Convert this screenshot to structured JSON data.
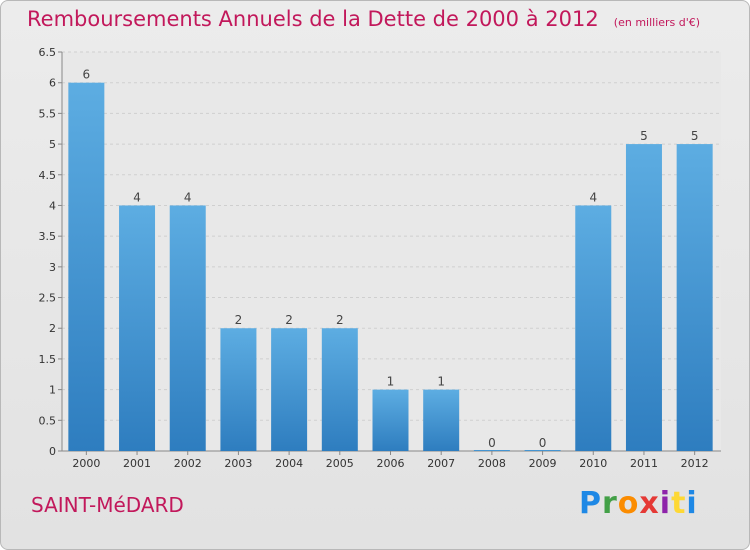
{
  "header": {
    "title": "Remboursements Annuels de la Dette de 2000 à 2012",
    "subtitle": "(en milliers d'€)"
  },
  "footer": {
    "commune": "SAINT-MéDARD",
    "logo": [
      "P",
      "r",
      "o",
      "x",
      "i",
      "t",
      "i"
    ]
  },
  "colors": {
    "title": "#c2185b",
    "bar_top": "#5dade2",
    "bar_bottom": "#2e7dbf",
    "background": "#e6e6e6"
  },
  "chart_data": {
    "type": "bar",
    "categories": [
      "2000",
      "2001",
      "2002",
      "2003",
      "2004",
      "2005",
      "2006",
      "2007",
      "2008",
      "2009",
      "2010",
      "2011",
      "2012"
    ],
    "values": [
      6,
      4,
      4,
      2,
      2,
      2,
      1,
      1,
      0,
      0,
      4,
      5,
      5
    ],
    "value_labels": [
      "6",
      "4",
      "4",
      "2",
      "2",
      "2",
      "1",
      "1",
      "0",
      "0",
      "4",
      "5",
      "5"
    ],
    "ylim": [
      0,
      6.5
    ],
    "yticks": [
      "0",
      "0.5",
      "1",
      "1.5",
      "2",
      "2.5",
      "3",
      "3.5",
      "4",
      "4.5",
      "5",
      "5.5",
      "6",
      "6.5"
    ],
    "grid": true
  }
}
